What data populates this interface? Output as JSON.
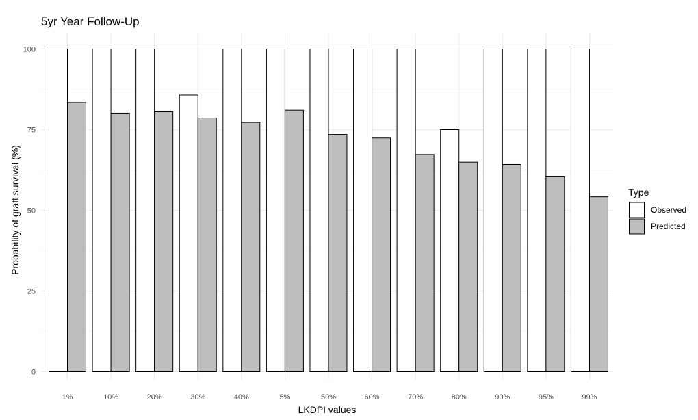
{
  "chart_data": {
    "type": "bar",
    "title": "5yr Year Follow-Up",
    "xlabel": "LKDPI values",
    "ylabel": "Probability of graft survival (%)",
    "categories": [
      "1%",
      "10%",
      "20%",
      "30%",
      "40%",
      "5%",
      "50%",
      "60%",
      "70%",
      "80%",
      "90%",
      "95%",
      "99%"
    ],
    "series": [
      {
        "name": "Observed",
        "color": "#ffffff",
        "values": [
          100,
          100,
          100,
          85.7,
          100,
          100,
          100,
          100,
          100,
          75,
          100,
          100,
          100
        ]
      },
      {
        "name": "Predicted",
        "color": "#bebebe",
        "values": [
          83.4,
          80.1,
          80.5,
          78.6,
          77.2,
          81,
          73.5,
          72.4,
          67.3,
          64.9,
          64.2,
          60.4,
          54.2
        ]
      }
    ],
    "ylim": [
      0,
      100
    ],
    "yticks": [
      0,
      25,
      50,
      75,
      100
    ],
    "grid": true,
    "legend": {
      "title": "Type",
      "position": "right"
    }
  }
}
